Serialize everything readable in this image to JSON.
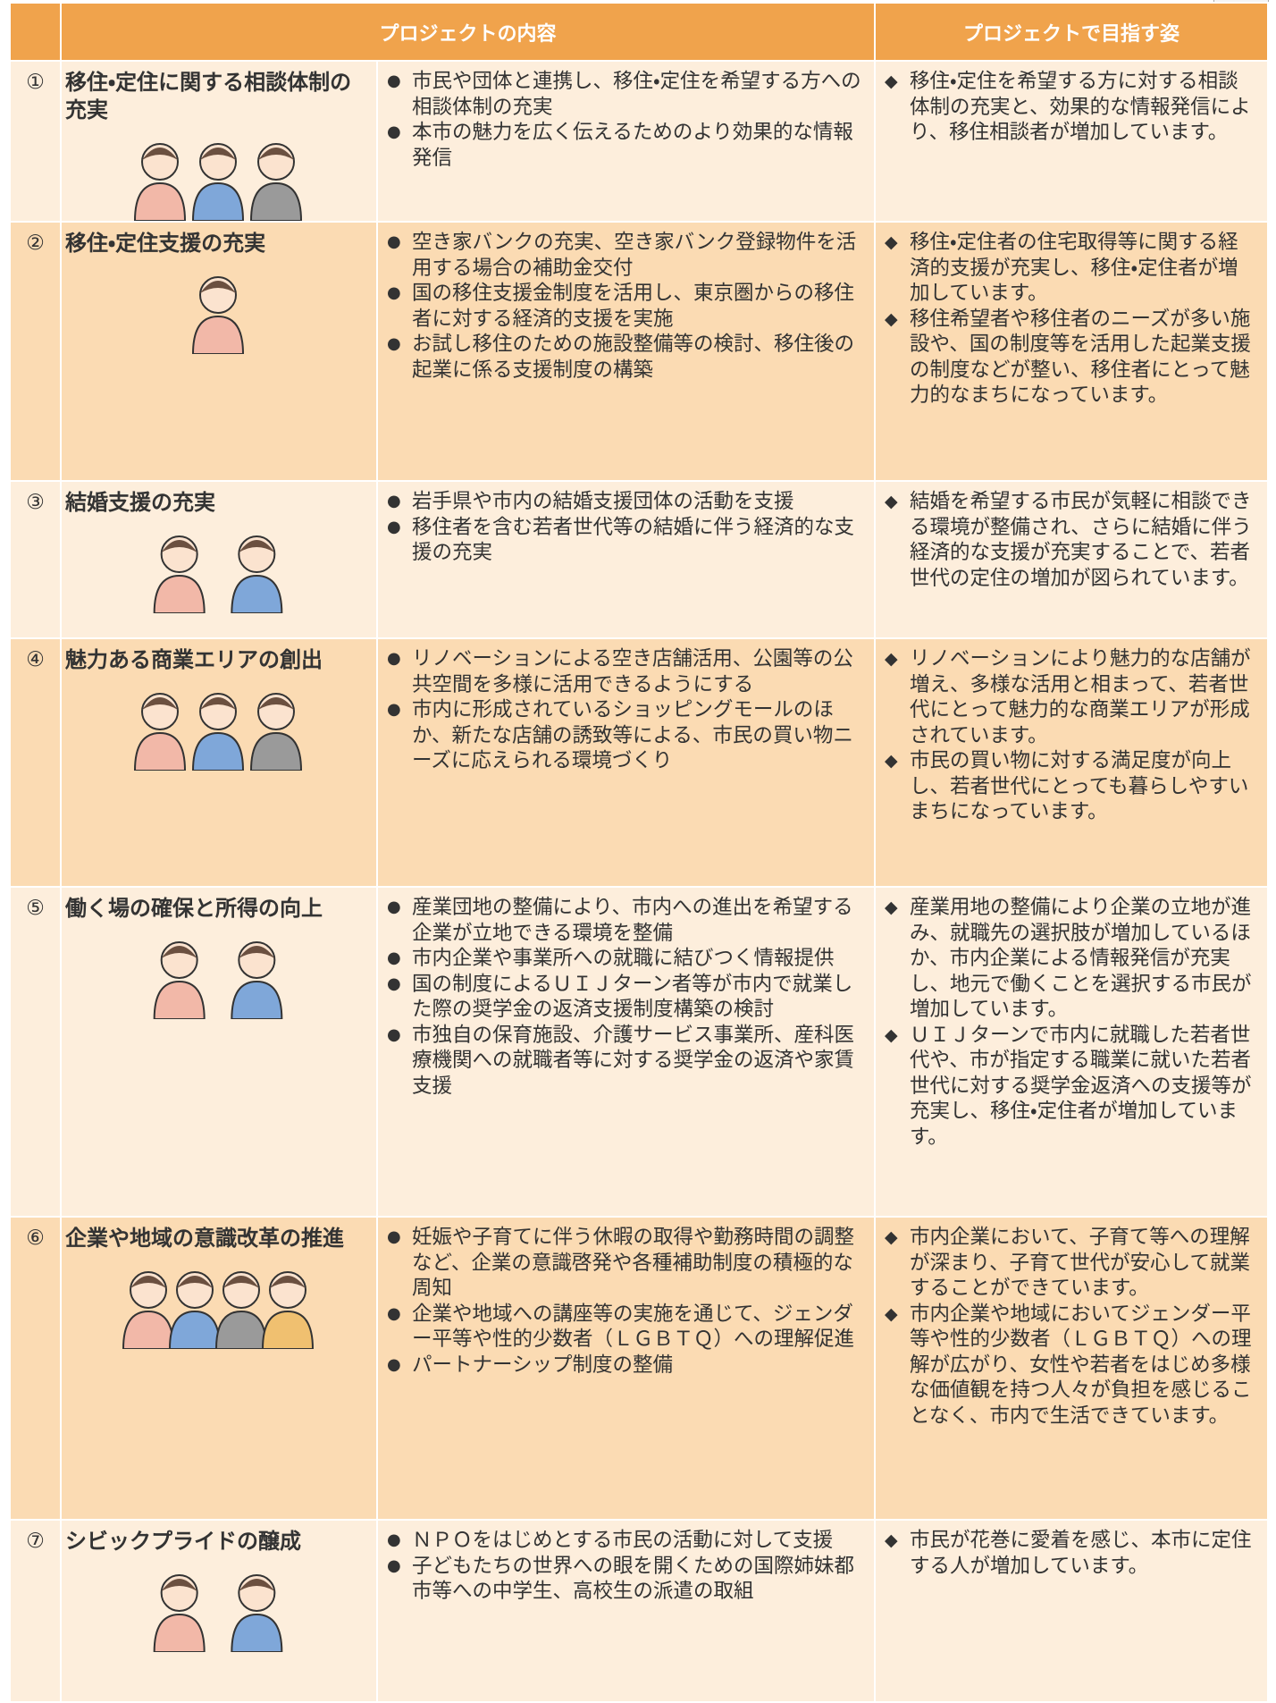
{
  "table": {
    "headers": [
      "プロジェクトの内容",
      "プロジェクトで目指す姿"
    ],
    "rows": [
      {
        "number": "①",
        "title": "移住・定住に関する相談体制の充実",
        "contents": [
          "市民や団体と連携し、移住・定住を希望する方への相談体制の充実",
          "本市の魅力を広く伝えるためのより効果的な情報発信"
        ],
        "goals": [
          "移住・定住を希望する方に対する相談体制の充実と、効果的な情報発信により、移住相談者が増加しています。"
        ]
      },
      {
        "number": "②",
        "title": "移住・定住支援の充実",
        "contents": [
          "空き家バンクの充実、空き家バンク登録物件を活用する場合の補助金交付",
          "国の移住支援金制度を活用し、東京圏からの移住者に対する経済的支援を実施",
          "お試し移住のための施設整備等の検討、移住後の起業に係る支援制度の構築"
        ],
        "goals": [
          "移住・定住者の住宅取得等に関する経済的支援が充実し、移住・定住者が増加しています。",
          "移住希望者や移住者のニーズが多い施設や、国の制度等を活用した起業支援の制度などが整い、移住者にとって魅力的なまちになっています。"
        ]
      },
      {
        "number": "③",
        "title": "結婚支援の充実",
        "contents": [
          "岩手県や市内の結婚支援団体の活動を支援",
          "移住者を含む若者世代等の結婚に伴う経済的な支援の充実"
        ],
        "goals": [
          "結婚を希望する市民が気軽に相談できる環境が整備され、さらに結婚に伴う経済的な支援が充実することで、若者世代の定住の増加が図られています。"
        ]
      },
      {
        "number": "④",
        "title": "魅力ある商業エリアの創出",
        "contents": [
          "リノベーションによる空き店舗活用、公園等の公共空間を多様に活用できるようにする",
          "市内に形成されているショッピングモールのほか、新たな店舗の誘致等による、市民の買い物ニーズに応えられる環境づくり"
        ],
        "goals": [
          "リノベーションにより魅力的な店舗が増え、多様な活用と相まって、若者世代にとって魅力的な商業エリアが形成されています。",
          "市民の買い物に対する満足度が向上し、若者世代にとっても暮らしやすいまちになっています。"
        ]
      },
      {
        "number": "⑤",
        "title": "働く場の確保と所得の向上",
        "contents": [
          "産業団地の整備により、市内への進出を希望する企業が立地できる環境を整備",
          "市内企業や事業所への就職に結びつく情報提供",
          "国の制度によるＵＩＪターン者等が市内で就業した際の奨学金の返済支援制度構築の検討",
          "市独自の保育施設、介護サービス事業所、産科医療機関への就職者等に対する奨学金の返済や家賃支援"
        ],
        "goals": [
          "産業用地の整備により企業の立地が進み、就職先の選択肢が増加しているほか、市内企業による情報発信が充実し、地元で働くことを選択する市民が増加しています。",
          "ＵＩＪターンで市内に就職した若者世代や、市が指定する職業に就いた若者世代に対する奨学金返済への支援等が充実し、移住・定住者が増加しています。"
        ]
      },
      {
        "number": "⑥",
        "title": "企業や地域の意識改革の推進",
        "contents": [
          "妊娠や子育てに伴う休暇の取得や勤務時間の調整など、企業の意識啓発や各種補助制度の積極的な周知",
          "企業や地域への講座等の実施を通じて、ジェンダー平等や性的少数者（ＬＧＢＴＱ）への理解促進",
          "パートナーシップ制度の整備"
        ],
        "goals": [
          "市内企業において、子育て等への理解が深まり、子育て世代が安心して就業することができています。",
          "市内企業や地域においてジェンダー平等や性的少数者（ＬＧＢＴＱ）への理解が広がり、女性や若者をはじめ多様な価値観を持つ人々が負担を感じることなく、市内で生活できています。"
        ]
      },
      {
        "number": "⑦",
        "title": "シビックプライドの醸成",
        "contents": [
          "ＮＰＯをはじめとする市民の活動に対して支援",
          "子どもたちの世界への眼を開くための国際姉妹都市等への中学生、高校生の派遣の取組"
        ],
        "goals": [
          "市民が花巻に愛着を感じ、本市に定住する人が増加しています。"
        ]
      }
    ]
  }
}
